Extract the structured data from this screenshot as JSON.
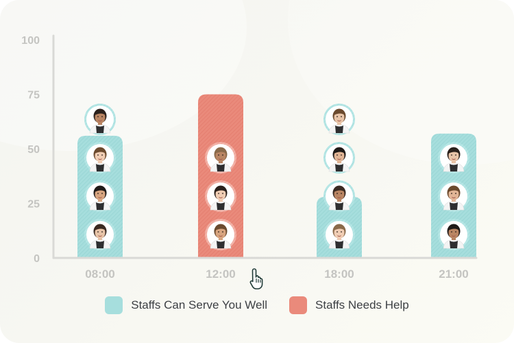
{
  "chart_data": {
    "type": "bar",
    "categories": [
      "08:00",
      "12:00",
      "18:00",
      "21:00"
    ],
    "series": [
      {
        "name": "Staffs Can Serve You Well",
        "values": [
          56,
          0,
          28,
          57
        ],
        "color": "#a6dedd"
      },
      {
        "name": "Staffs Needs Help",
        "values": [
          0,
          75,
          0,
          0
        ],
        "color": "#ea8a7b"
      }
    ],
    "staff_avatars": [
      4,
      3,
      4,
      3
    ],
    "avatar_ring_color": "#b2e4e3",
    "yticks": [
      0,
      25,
      50,
      75,
      100
    ],
    "ylim": [
      0,
      100
    ],
    "grid": false,
    "legend_position": "bottom-center",
    "axis_color": "#d9d9d6",
    "tick_label_color": "#c4c4c1"
  },
  "legend": [
    {
      "label": "Staffs Can Serve You Well",
      "color": "#a6dedd"
    },
    {
      "label": "Staffs Needs Help",
      "color": "#ea8a7b"
    }
  ],
  "cursor_icon": "hand-pointer-icon"
}
